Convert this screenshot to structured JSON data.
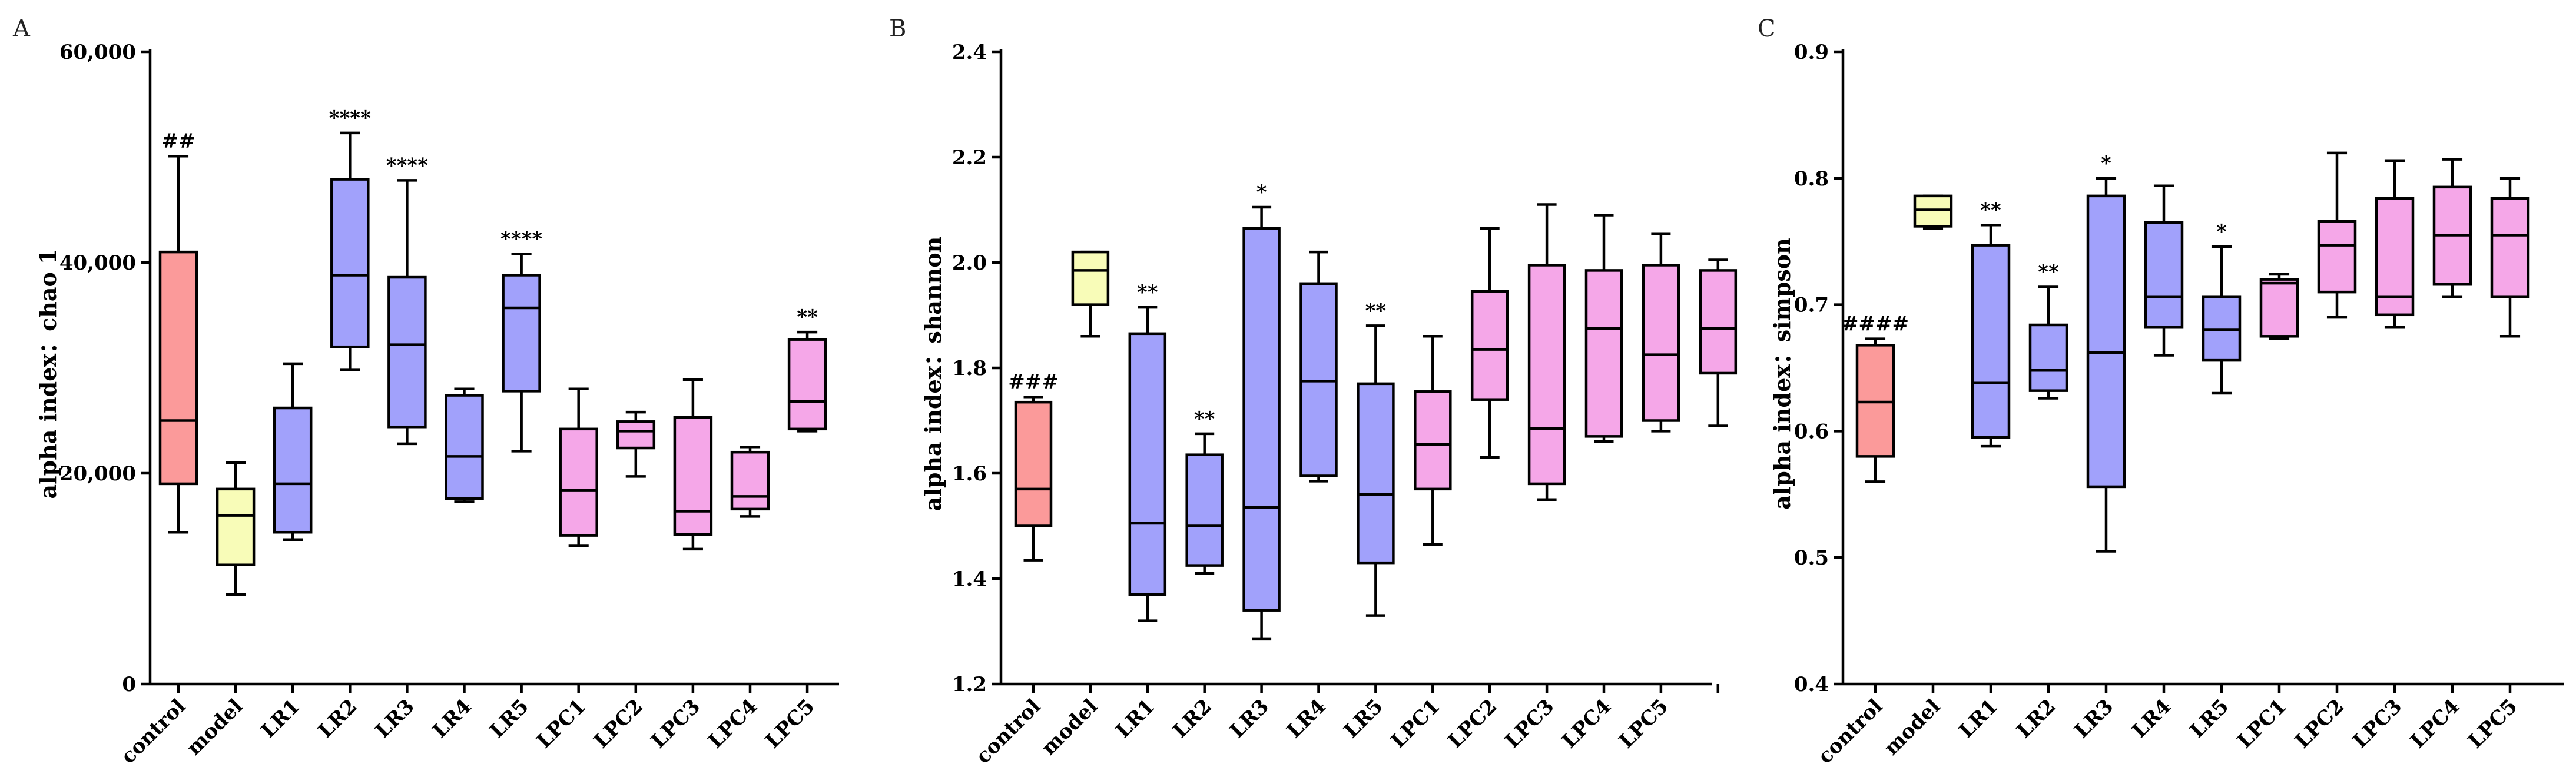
{
  "colors": {
    "control": "#fb9a9a",
    "model": "#f8fcb8",
    "LR": "#a1a1fb",
    "LPC": "#f5a7e8",
    "stroke": "#000000"
  },
  "chart_data": [
    {
      "panel": "A",
      "type": "box",
      "ylabel": "alpha index：chao 1",
      "ylim": [
        0,
        60000
      ],
      "yticks": [
        0,
        20000,
        40000,
        60000
      ],
      "ytick_labels": [
        "0",
        "20,000",
        "40,000",
        "60,000"
      ],
      "categories": [
        "control",
        "model",
        "LR1",
        "LR2",
        "LR3",
        "LR4",
        "LR5",
        "LPC1",
        "LPC2",
        "LPC3",
        "LPC4",
        "LPC5"
      ],
      "boxes": [
        {
          "category": "control",
          "group": "control",
          "min": 14400,
          "q1": 19000,
          "median": 25000,
          "q3": 41000,
          "max": 50100,
          "annotation": "##"
        },
        {
          "category": "model",
          "group": "model",
          "min": 8500,
          "q1": 11300,
          "median": 16000,
          "q3": 18500,
          "max": 21000,
          "annotation": ""
        },
        {
          "category": "LR1",
          "group": "LR",
          "min": 13700,
          "q1": 14400,
          "median": 19000,
          "q3": 26200,
          "max": 30400,
          "annotation": ""
        },
        {
          "category": "LR2",
          "group": "LR",
          "min": 29800,
          "q1": 32000,
          "median": 38800,
          "q3": 47900,
          "max": 52300,
          "annotation": "****"
        },
        {
          "category": "LR3",
          "group": "LR",
          "min": 22800,
          "q1": 24400,
          "median": 32200,
          "q3": 38600,
          "max": 47800,
          "annotation": "****"
        },
        {
          "category": "LR4",
          "group": "LR",
          "min": 17300,
          "q1": 17600,
          "median": 21600,
          "q3": 27400,
          "max": 28000,
          "annotation": ""
        },
        {
          "category": "LR5",
          "group": "LR",
          "min": 22100,
          "q1": 27800,
          "median": 35700,
          "q3": 38800,
          "max": 40800,
          "annotation": "****"
        },
        {
          "category": "LPC1",
          "group": "LPC",
          "min": 13100,
          "q1": 14100,
          "median": 18400,
          "q3": 24200,
          "max": 28000,
          "annotation": ""
        },
        {
          "category": "LPC2",
          "group": "LPC",
          "min": 19700,
          "q1": 22400,
          "median": 24000,
          "q3": 24900,
          "max": 25800,
          "annotation": ""
        },
        {
          "category": "LPC3",
          "group": "LPC",
          "min": 12800,
          "q1": 14200,
          "median": 16400,
          "q3": 25300,
          "max": 28900,
          "annotation": ""
        },
        {
          "category": "LPC4",
          "group": "LPC",
          "min": 15900,
          "q1": 16600,
          "median": 17800,
          "q3": 22000,
          "max": 22500,
          "annotation": ""
        },
        {
          "category": "LPC5",
          "group": "LPC",
          "min": 24000,
          "q1": 24200,
          "median": 26800,
          "q3": 32700,
          "max": 33400,
          "annotation": "**"
        }
      ]
    },
    {
      "panel": "B",
      "type": "box",
      "ylabel": "alpha index：shannon",
      "ylim": [
        1.2,
        2.4
      ],
      "yticks": [
        1.2,
        1.4,
        1.6,
        1.8,
        2.0,
        2.2,
        2.4
      ],
      "ytick_labels": [
        "1.2",
        "1.4",
        "1.6",
        "1.8",
        "2.0",
        "2.2",
        "2.4"
      ],
      "categories": [
        "control",
        "model",
        "LR1",
        "LR2",
        "LR3",
        "LR4",
        "LR5",
        "LPC1",
        "LPC2",
        "LPC3",
        "LPC4",
        "LPC5"
      ],
      "slots": 13,
      "boxes": [
        {
          "category": "control",
          "group": "control",
          "min": 1.435,
          "q1": 1.5,
          "median": 1.57,
          "q3": 1.735,
          "max": 1.745,
          "annotation": "###"
        },
        {
          "category": "model",
          "group": "model",
          "min": 1.86,
          "q1": 1.92,
          "median": 1.985,
          "q3": 2.02,
          "max": 2.02,
          "annotation": ""
        },
        {
          "category": "LR1",
          "group": "LR",
          "min": 1.32,
          "q1": 1.37,
          "median": 1.505,
          "q3": 1.865,
          "max": 1.915,
          "annotation": "**"
        },
        {
          "category": "LR2",
          "group": "LR",
          "min": 1.41,
          "q1": 1.425,
          "median": 1.5,
          "q3": 1.635,
          "max": 1.675,
          "annotation": "**"
        },
        {
          "category": "LR3",
          "group": "LR",
          "min": 1.285,
          "q1": 1.34,
          "median": 1.535,
          "q3": 2.065,
          "max": 2.105,
          "annotation": "*"
        },
        {
          "category": "LR4",
          "group": "LR",
          "min": 1.585,
          "q1": 1.595,
          "median": 1.775,
          "q3": 1.96,
          "max": 2.02,
          "annotation": ""
        },
        {
          "category": "LR5",
          "group": "LR",
          "min": 1.33,
          "q1": 1.43,
          "median": 1.56,
          "q3": 1.77,
          "max": 1.88,
          "annotation": "**"
        },
        {
          "category": "LPC1",
          "group": "LPC",
          "min": 1.465,
          "q1": 1.57,
          "median": 1.655,
          "q3": 1.755,
          "max": 1.86,
          "annotation": ""
        },
        {
          "category": "LPC2",
          "group": "LPC",
          "min": 1.63,
          "q1": 1.74,
          "median": 1.835,
          "q3": 1.945,
          "max": 2.065,
          "annotation": ""
        },
        {
          "category": "LPC3",
          "group": "LPC",
          "min": 1.55,
          "q1": 1.58,
          "median": 1.685,
          "q3": 1.995,
          "max": 2.11,
          "annotation": ""
        },
        {
          "category": "LPC4",
          "group": "LPC",
          "min": 1.66,
          "q1": 1.67,
          "median": 1.875,
          "q3": 1.985,
          "max": 2.09,
          "annotation": ""
        },
        {
          "category": "LPC5",
          "group": "LPC",
          "min": 1.68,
          "q1": 1.7,
          "median": 1.825,
          "q3": 1.995,
          "max": 2.055,
          "annotation": ""
        },
        {
          "category": "",
          "group": "LPC",
          "min": 1.69,
          "q1": 1.79,
          "median": 1.875,
          "q3": 1.985,
          "max": 2.005,
          "annotation": ""
        }
      ]
    },
    {
      "panel": "C",
      "type": "box",
      "ylabel": "alpha index：simpson",
      "ylim": [
        0.4,
        0.9
      ],
      "yticks": [
        0.4,
        0.5,
        0.6,
        0.7,
        0.8,
        0.9
      ],
      "ytick_labels": [
        "0.4",
        "0.5",
        "0.6",
        "0.7",
        "0.8",
        "0.9"
      ],
      "categories": [
        "control",
        "model",
        "LR1",
        "LR2",
        "LR3",
        "LR4",
        "LR5",
        "LPC1",
        "LPC2",
        "LPC3",
        "LPC4",
        "LPC5"
      ],
      "boxes": [
        {
          "category": "control",
          "group": "control",
          "min": 0.56,
          "q1": 0.58,
          "median": 0.623,
          "q3": 0.668,
          "max": 0.673,
          "annotation": "####"
        },
        {
          "category": "model",
          "group": "model",
          "min": 0.76,
          "q1": 0.762,
          "median": 0.775,
          "q3": 0.786,
          "max": 0.786,
          "annotation": ""
        },
        {
          "category": "LR1",
          "group": "LR",
          "min": 0.588,
          "q1": 0.595,
          "median": 0.638,
          "q3": 0.747,
          "max": 0.763,
          "annotation": "**"
        },
        {
          "category": "LR2",
          "group": "LR",
          "min": 0.626,
          "q1": 0.632,
          "median": 0.648,
          "q3": 0.684,
          "max": 0.714,
          "annotation": "**"
        },
        {
          "category": "LR3",
          "group": "LR",
          "min": 0.505,
          "q1": 0.556,
          "median": 0.662,
          "q3": 0.786,
          "max": 0.8,
          "annotation": "*"
        },
        {
          "category": "LR4",
          "group": "LR",
          "min": 0.66,
          "q1": 0.682,
          "median": 0.706,
          "q3": 0.765,
          "max": 0.794,
          "annotation": ""
        },
        {
          "category": "LR5",
          "group": "LR",
          "min": 0.63,
          "q1": 0.656,
          "median": 0.68,
          "q3": 0.706,
          "max": 0.746,
          "annotation": "*"
        },
        {
          "category": "LPC1",
          "group": "LPC",
          "min": 0.673,
          "q1": 0.675,
          "median": 0.717,
          "q3": 0.72,
          "max": 0.724,
          "annotation": ""
        },
        {
          "category": "LPC2",
          "group": "LPC",
          "min": 0.69,
          "q1": 0.71,
          "median": 0.747,
          "q3": 0.766,
          "max": 0.82,
          "annotation": ""
        },
        {
          "category": "LPC3",
          "group": "LPC",
          "min": 0.682,
          "q1": 0.692,
          "median": 0.706,
          "q3": 0.784,
          "max": 0.814,
          "annotation": ""
        },
        {
          "category": "LPC4",
          "group": "LPC",
          "min": 0.706,
          "q1": 0.716,
          "median": 0.755,
          "q3": 0.793,
          "max": 0.815,
          "annotation": ""
        },
        {
          "category": "LPC5",
          "group": "LPC",
          "min": 0.675,
          "q1": 0.706,
          "median": 0.755,
          "q3": 0.784,
          "max": 0.8,
          "annotation": ""
        }
      ]
    }
  ]
}
